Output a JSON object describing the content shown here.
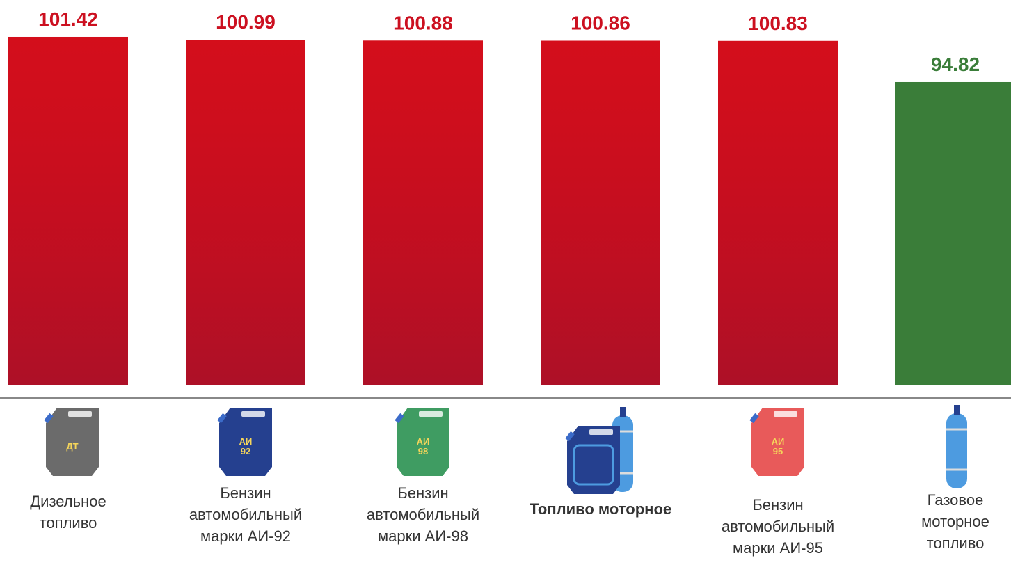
{
  "chart_data": {
    "type": "bar",
    "categories": [
      "Дизельное топливо",
      "Бензин автомобильный марки АИ-92",
      "Бензин автомобильный марки АИ-98",
      "Топливо моторное",
      "Бензин автомобильный марки АИ-95",
      "Газовое моторное топливо"
    ],
    "values": [
      101.42,
      100.99,
      100.88,
      100.86,
      100.83,
      94.82
    ],
    "colors": [
      "#cc1020",
      "#cc1020",
      "#cc1020",
      "#cc1020",
      "#cc1020",
      "#3a7d39"
    ],
    "icon_texts": [
      "ДТ",
      "АИ 92",
      "АИ 98",
      null,
      "АИ 95",
      null
    ],
    "ylim": [
      50.65,
      106.8
    ]
  }
}
